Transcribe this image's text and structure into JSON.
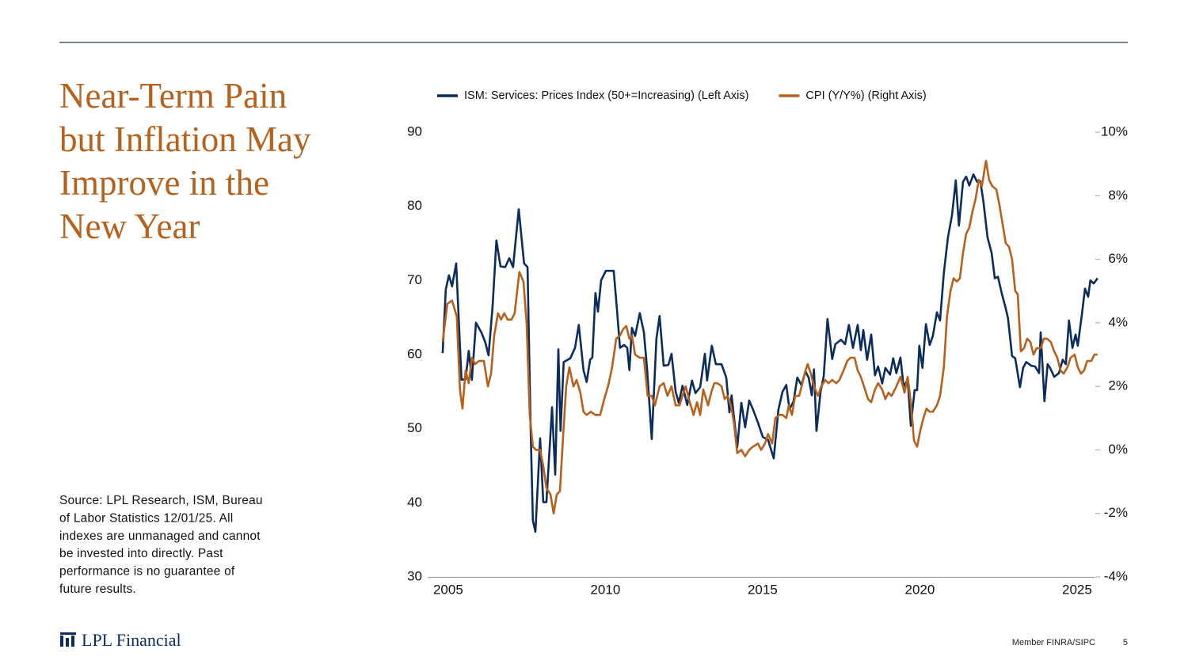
{
  "slide": {
    "title_lines": [
      "Near-Term Pain",
      "but Inflation May",
      "Improve in the",
      "New Year"
    ],
    "source_lines": [
      "Source: LPL Research, ISM, Bureau",
      "of Labor Statistics 12/01/25. All",
      "indexes are unmanaged and cannot",
      "be invested into directly. Past",
      "performance is no guarantee of",
      "future results."
    ],
    "logo": "LPL Financial",
    "member": "Member FINRA/SIPC",
    "page_number": "5"
  },
  "chart_data": {
    "type": "line",
    "legend": "top",
    "grid": false,
    "xlim": [
      2004.65,
      2026.0
    ],
    "xticks": [
      2005,
      2010,
      2015,
      2020,
      2025
    ],
    "ylim": [
      30,
      90
    ],
    "yticks": [
      30,
      40,
      50,
      60,
      70,
      80,
      90
    ],
    "y2lim": [
      -4,
      10
    ],
    "y2ticks": [
      {
        "value": -4,
        "label": "-4%"
      },
      {
        "value": -2,
        "label": "-2%"
      },
      {
        "value": 0,
        "label": "0%"
      },
      {
        "value": 2,
        "label": "2%"
      },
      {
        "value": 4,
        "label": "4%"
      },
      {
        "value": 6,
        "label": "6%"
      },
      {
        "value": 8,
        "label": "8%"
      },
      {
        "value": 10,
        "label": "10%"
      }
    ],
    "series": [
      {
        "name": "ISM: Services: Prices Index (50+=Increasing) (Left Axis)",
        "color": "#0a2d5e",
        "axis": "y",
        "x": [
          2005.0,
          2005.1,
          2005.2,
          2005.3,
          2005.43,
          2005.6,
          2005.73,
          2005.83,
          2005.93,
          2006.06,
          2006.23,
          2006.36,
          2006.46,
          2006.59,
          2006.71,
          2006.84,
          2006.99,
          2007.12,
          2007.24,
          2007.42,
          2007.59,
          2007.7,
          2007.8,
          2007.87,
          2007.95,
          2008.1,
          2008.2,
          2008.3,
          2008.48,
          2008.58,
          2008.68,
          2008.75,
          2008.85,
          2009.06,
          2009.21,
          2009.33,
          2009.48,
          2009.58,
          2009.69,
          2009.76,
          2009.86,
          2009.94,
          2010.04,
          2010.19,
          2010.44,
          2010.54,
          2010.64,
          2010.77,
          2010.87,
          2010.94,
          2011.02,
          2011.12,
          2011.27,
          2011.4,
          2011.5,
          2011.65,
          2011.8,
          2011.9,
          2012.03,
          2012.18,
          2012.28,
          2012.41,
          2012.51,
          2012.63,
          2012.78,
          2012.93,
          2013.04,
          2013.19,
          2013.34,
          2013.41,
          2013.56,
          2013.69,
          2013.87,
          2014.02,
          2014.12,
          2014.19,
          2014.37,
          2014.5,
          2014.62,
          2014.75,
          2014.87,
          2015.03,
          2015.18,
          2015.35,
          2015.53,
          2015.68,
          2015.81,
          2015.93,
          2016.03,
          2016.16,
          2016.28,
          2016.41,
          2016.54,
          2016.64,
          2016.74,
          2016.81,
          2016.89,
          2017.02,
          2017.12,
          2017.24,
          2017.39,
          2017.49,
          2017.67,
          2017.8,
          2017.92,
          2018.05,
          2018.2,
          2018.3,
          2018.38,
          2018.5,
          2018.63,
          2018.75,
          2018.85,
          2018.98,
          2019.08,
          2019.23,
          2019.33,
          2019.43,
          2019.56,
          2019.66,
          2019.79,
          2019.89,
          2020.01,
          2020.09,
          2020.16,
          2020.26,
          2020.37,
          2020.49,
          2020.59,
          2020.72,
          2020.82,
          2020.94,
          2021.07,
          2021.2,
          2021.32,
          2021.42,
          2021.55,
          2021.65,
          2021.75,
          2021.88,
          2022.0,
          2022.1,
          2022.2,
          2022.33,
          2022.46,
          2022.56,
          2022.66,
          2022.78,
          2022.91,
          2022.98,
          2023.11,
          2023.21,
          2023.36,
          2023.46,
          2023.56,
          2023.72,
          2023.84,
          2023.97,
          2024.02,
          2024.14,
          2024.24,
          2024.32,
          2024.45,
          2024.6,
          2024.72,
          2024.82,
          2024.92,
          2025.03,
          2025.13,
          2025.2,
          2025.33,
          2025.43,
          2025.53,
          2025.6,
          2025.71,
          2025.83
        ],
        "values": [
          60.2,
          68.8,
          70.7,
          69.2,
          72.3,
          56.6,
          56.7,
          60.5,
          56.6,
          64.3,
          63.0,
          61.6,
          59.9,
          66.6,
          75.4,
          71.9,
          71.8,
          73.0,
          71.8,
          79.6,
          72.3,
          71.8,
          49.7,
          37.6,
          36.1,
          48.7,
          40.1,
          40.1,
          52.9,
          43.8,
          60.7,
          49.7,
          59.0,
          59.5,
          60.9,
          64.0,
          57.9,
          56.3,
          59.3,
          59.6,
          68.3,
          65.8,
          70.0,
          71.3,
          71.3,
          66.3,
          60.9,
          61.3,
          60.9,
          57.9,
          63.6,
          62.5,
          65.6,
          63.0,
          58.2,
          48.6,
          62.2,
          65.2,
          58.5,
          58.6,
          60.1,
          55.0,
          53.5,
          55.8,
          53.2,
          56.5,
          54.8,
          55.6,
          60.1,
          56.5,
          61.2,
          58.7,
          58.7,
          56.9,
          52.2,
          54.5,
          47.5,
          53.5,
          50.2,
          53.8,
          52.6,
          50.8,
          48.9,
          48.5,
          46.0,
          52.6,
          55.0,
          55.9,
          52.6,
          53.7,
          56.9,
          55.9,
          57.7,
          56.9,
          54.5,
          58.0,
          49.7,
          55.0,
          57.1,
          64.8,
          59.4,
          61.4,
          62.0,
          61.4,
          64.0,
          60.9,
          64.0,
          60.6,
          63.3,
          59.3,
          62.7,
          57.2,
          58.4,
          56.1,
          58.2,
          57.3,
          59.5,
          57.5,
          59.6,
          55.7,
          56.6,
          50.4,
          55.2,
          55.2,
          61.2,
          58.2,
          64.1,
          61.3,
          62.5,
          65.7,
          64.6,
          71.0,
          75.8,
          78.8,
          83.5,
          77.4,
          83.3,
          84.0,
          82.8,
          84.3,
          83.3,
          83.4,
          80.6,
          75.8,
          73.7,
          70.3,
          70.5,
          68.3,
          66.2,
          64.9,
          59.8,
          59.5,
          55.6,
          58.2,
          59.0,
          58.5,
          58.4,
          57.5,
          63.0,
          53.7,
          58.7,
          58.2,
          57.0,
          57.5,
          59.3,
          58.7,
          64.6,
          60.9,
          62.7,
          61.2,
          65.4,
          68.9,
          67.8,
          70.0,
          69.6,
          70.3
        ]
      },
      {
        "name": "CPI (Y/Y%) (Right Axis)",
        "color": "#b8601c",
        "axis": "y2",
        "x": [
          2005.0,
          2005.15,
          2005.3,
          2005.45,
          2005.55,
          2005.63,
          2005.73,
          2005.83,
          2005.93,
          2006.03,
          2006.16,
          2006.31,
          2006.44,
          2006.54,
          2006.64,
          2006.76,
          2006.86,
          2006.96,
          2007.07,
          2007.19,
          2007.29,
          2007.44,
          2007.57,
          2007.67,
          2007.77,
          2007.87,
          2007.97,
          2008.1,
          2008.2,
          2008.3,
          2008.43,
          2008.53,
          2008.63,
          2008.73,
          2008.83,
          2008.93,
          2009.03,
          2009.16,
          2009.26,
          2009.38,
          2009.48,
          2009.58,
          2009.71,
          2009.86,
          2010.01,
          2010.14,
          2010.26,
          2010.39,
          2010.52,
          2010.64,
          2010.74,
          2010.84,
          2010.94,
          2011.02,
          2011.12,
          2011.27,
          2011.4,
          2011.52,
          2011.65,
          2011.75,
          2011.9,
          2012.03,
          2012.15,
          2012.28,
          2012.41,
          2012.53,
          2012.63,
          2012.73,
          2012.86,
          2012.98,
          2013.09,
          2013.19,
          2013.29,
          2013.44,
          2013.54,
          2013.64,
          2013.74,
          2013.87,
          2013.97,
          2014.07,
          2014.19,
          2014.27,
          2014.37,
          2014.5,
          2014.62,
          2014.75,
          2014.87,
          2015.03,
          2015.13,
          2015.25,
          2015.35,
          2015.48,
          2015.58,
          2015.71,
          2015.81,
          2015.93,
          2016.01,
          2016.11,
          2016.21,
          2016.34,
          2016.44,
          2016.54,
          2016.61,
          2016.71,
          2016.81,
          2016.94,
          2017.04,
          2017.17,
          2017.27,
          2017.39,
          2017.52,
          2017.62,
          2017.75,
          2017.87,
          2017.97,
          2018.1,
          2018.2,
          2018.3,
          2018.4,
          2018.53,
          2018.63,
          2018.75,
          2018.85,
          2018.98,
          2019.08,
          2019.18,
          2019.28,
          2019.43,
          2019.56,
          2019.69,
          2019.79,
          2019.89,
          2019.99,
          2020.09,
          2020.19,
          2020.29,
          2020.39,
          2020.49,
          2020.59,
          2020.72,
          2020.82,
          2020.94,
          2021.04,
          2021.15,
          2021.25,
          2021.35,
          2021.45,
          2021.55,
          2021.65,
          2021.75,
          2021.85,
          2021.95,
          2022.05,
          2022.15,
          2022.28,
          2022.38,
          2022.48,
          2022.61,
          2022.71,
          2022.81,
          2022.91,
          2023.01,
          2023.11,
          2023.21,
          2023.29,
          2023.39,
          2023.49,
          2023.59,
          2023.69,
          2023.79,
          2023.89,
          2024.02,
          2024.12,
          2024.22,
          2024.34,
          2024.45,
          2024.55,
          2024.65,
          2024.75,
          2024.87,
          2024.97,
          2025.1,
          2025.2,
          2025.3,
          2025.4,
          2025.5,
          2025.63,
          2025.73,
          2025.83
        ],
        "values": [
          3.4,
          4.6,
          4.7,
          4.2,
          1.9,
          1.3,
          2.5,
          2.1,
          2.9,
          2.7,
          2.8,
          2.8,
          2.0,
          2.4,
          3.6,
          4.3,
          4.1,
          4.3,
          4.1,
          4.1,
          4.3,
          5.6,
          5.3,
          4.0,
          1.1,
          0.1,
          0.0,
          0.0,
          -0.5,
          -1.2,
          -1.4,
          -2.0,
          -1.4,
          -1.3,
          0.4,
          2.0,
          2.6,
          2.0,
          2.2,
          1.8,
          1.2,
          1.1,
          1.2,
          1.1,
          1.1,
          1.6,
          2.0,
          2.6,
          3.5,
          3.6,
          3.8,
          3.9,
          3.5,
          3.6,
          3.0,
          2.9,
          2.9,
          1.7,
          1.7,
          1.4,
          2.0,
          2.1,
          1.7,
          2.0,
          1.4,
          1.4,
          1.7,
          2.0,
          1.5,
          1.1,
          1.5,
          1.1,
          1.9,
          1.4,
          1.8,
          2.1,
          2.1,
          2.0,
          1.6,
          1.7,
          1.3,
          0.8,
          -0.1,
          0.0,
          -0.2,
          0.0,
          0.1,
          0.2,
          0.0,
          0.2,
          0.5,
          0.2,
          1.0,
          1.1,
          1.1,
          1.0,
          1.4,
          1.1,
          1.7,
          1.7,
          2.1,
          2.5,
          2.7,
          2.4,
          2.0,
          1.7,
          2.0,
          2.2,
          2.1,
          2.2,
          2.1,
          2.2,
          2.5,
          2.8,
          2.9,
          2.9,
          2.5,
          2.3,
          2.0,
          1.6,
          1.5,
          1.9,
          2.1,
          1.9,
          1.6,
          1.8,
          1.7,
          2.0,
          2.3,
          1.8,
          2.3,
          1.5,
          0.3,
          0.1,
          0.6,
          1.0,
          1.3,
          1.2,
          1.2,
          1.4,
          1.7,
          2.6,
          4.2,
          5.0,
          5.4,
          5.3,
          5.4,
          6.2,
          6.8,
          7.0,
          7.5,
          7.9,
          8.5,
          8.3,
          9.1,
          8.5,
          8.3,
          8.2,
          7.7,
          7.1,
          6.5,
          6.4,
          6.0,
          5.0,
          4.9,
          3.1,
          3.2,
          3.5,
          3.4,
          3.0,
          3.2,
          3.2,
          3.5,
          3.5,
          3.4,
          3.1,
          2.9,
          2.5,
          2.4,
          2.6,
          2.9,
          3.0,
          2.6,
          2.4,
          2.5,
          2.8,
          2.8,
          3.0,
          3.0
        ]
      }
    ]
  }
}
